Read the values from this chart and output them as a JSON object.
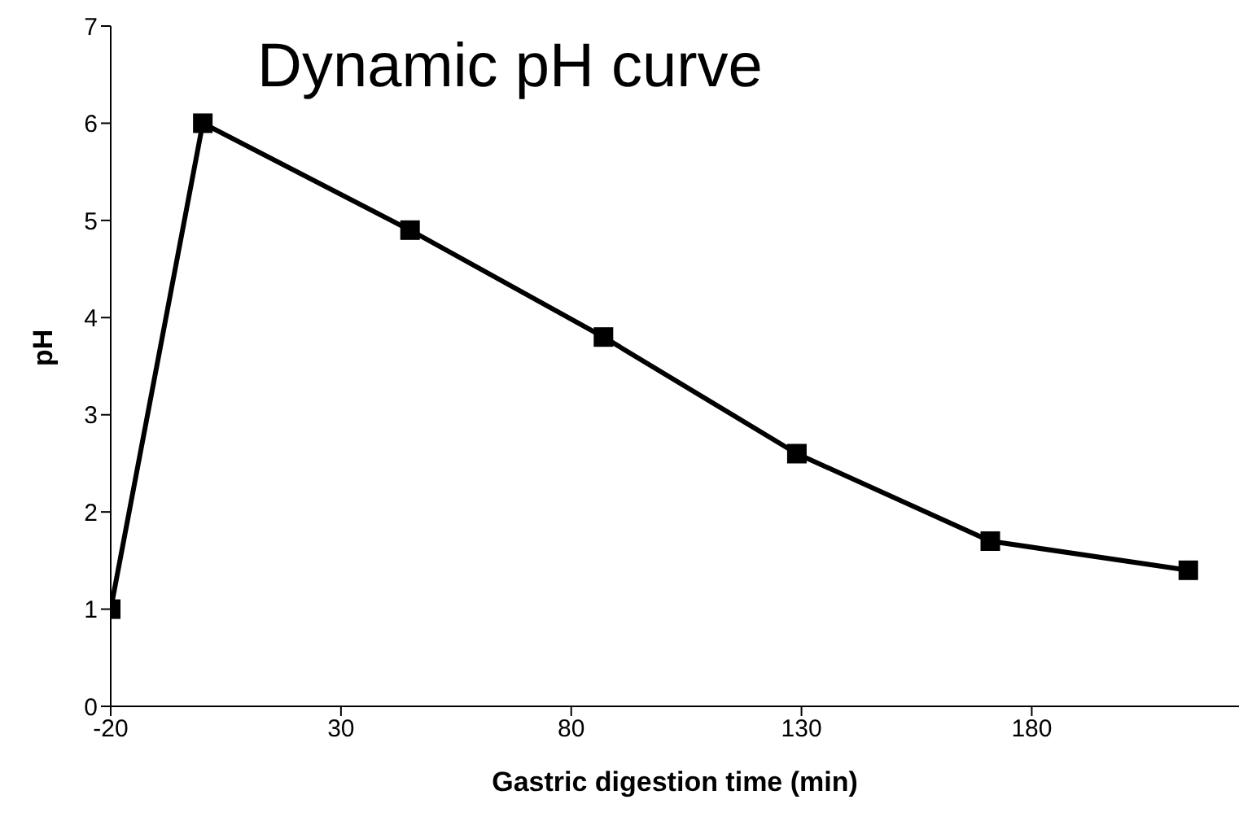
{
  "chart_data": {
    "type": "line",
    "title": "Dynamic pH curve",
    "xlabel": "Gastric digestion time (min)",
    "ylabel": "pH",
    "x": [
      -20,
      0,
      45,
      87,
      129,
      171,
      214
    ],
    "series": [
      {
        "color": "#000000",
        "values": [
          1.0,
          6.0,
          4.9,
          3.8,
          2.6,
          1.7,
          1.4
        ]
      }
    ],
    "xlim": [
      -20,
      225
    ],
    "xticks": [
      -20,
      30,
      80,
      130,
      180
    ],
    "ylim": [
      0,
      7
    ],
    "yticks": [
      0,
      1,
      2,
      3,
      4,
      5,
      6,
      7
    ],
    "grid": false,
    "legend": false,
    "marker": "square",
    "line_style": "solid"
  }
}
